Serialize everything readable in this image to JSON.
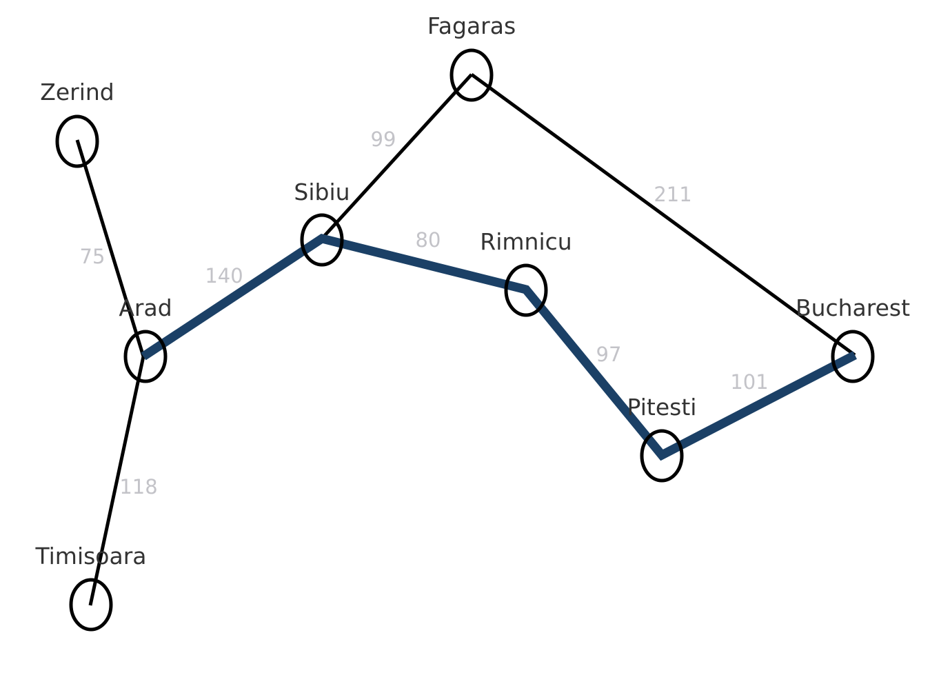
{
  "graph": {
    "title": "",
    "colors": {
      "edge": "#000000",
      "highlighted_path": "#1b4066",
      "node_outline": "#000000",
      "city_label": "#333333",
      "weight_label": "#c3c3c8"
    },
    "nodes": [
      {
        "id": "zerind",
        "name": "Zerind"
      },
      {
        "id": "arad",
        "name": "Arad"
      },
      {
        "id": "timisoara",
        "name": "Timisoara"
      },
      {
        "id": "sibiu",
        "name": "Sibiu"
      },
      {
        "id": "fagaras",
        "name": "Fagaras"
      },
      {
        "id": "rimnicu",
        "name": "Rimnicu"
      },
      {
        "id": "pitesti",
        "name": "Pitesti"
      },
      {
        "id": "bucharest",
        "name": "Bucharest"
      }
    ],
    "edges": [
      {
        "from": "zerind",
        "to": "arad",
        "weight": "75",
        "on_path": false
      },
      {
        "from": "arad",
        "to": "timisoara",
        "weight": "118",
        "on_path": false
      },
      {
        "from": "arad",
        "to": "sibiu",
        "weight": "140",
        "on_path": true
      },
      {
        "from": "sibiu",
        "to": "fagaras",
        "weight": "99",
        "on_path": false
      },
      {
        "from": "fagaras",
        "to": "bucharest",
        "weight": "211",
        "on_path": false
      },
      {
        "from": "sibiu",
        "to": "rimnicu",
        "weight": "80",
        "on_path": true
      },
      {
        "from": "rimnicu",
        "to": "pitesti",
        "weight": "97",
        "on_path": true
      },
      {
        "from": "pitesti",
        "to": "bucharest",
        "weight": "101",
        "on_path": true
      }
    ],
    "highlighted_path": [
      "arad",
      "sibiu",
      "rimnicu",
      "pitesti",
      "bucharest"
    ]
  }
}
